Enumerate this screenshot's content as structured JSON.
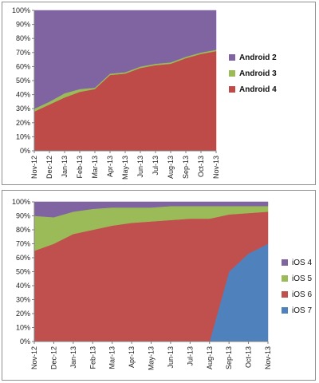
{
  "chart_data": [
    {
      "type": "area",
      "stacked": true,
      "percent": true,
      "title": "",
      "xlabel": "",
      "ylabel": "",
      "ylim": [
        0,
        100
      ],
      "y_ticks": [
        "0%",
        "10%",
        "20%",
        "30%",
        "40%",
        "50%",
        "60%",
        "70%",
        "80%",
        "90%",
        "100%"
      ],
      "categories": [
        "Nov-12",
        "Dec-12",
        "Jan-13",
        "Feb-13",
        "Mar-13",
        "Apr-13",
        "May-13",
        "Jun-13",
        "Jul-13",
        "Aug-13",
        "Sep-13",
        "Oct-13",
        "Nov-13"
      ],
      "legend_position": "right",
      "legend_bold": true,
      "grid": false,
      "series": [
        {
          "name": "Android 4",
          "color": "#be4b48",
          "values": [
            28,
            33,
            38,
            42,
            44,
            54,
            55,
            59,
            61,
            62,
            66,
            69,
            71
          ]
        },
        {
          "name": "Android 3",
          "color": "#9bbb59",
          "values": [
            2,
            2,
            3,
            2,
            1,
            1,
            1,
            1,
            1,
            1,
            1,
            1,
            1
          ]
        },
        {
          "name": "Android 2",
          "color": "#8064a2",
          "values": [
            70,
            65,
            59,
            56,
            55,
            45,
            44,
            40,
            38,
            37,
            33,
            30,
            28
          ]
        }
      ]
    },
    {
      "type": "area",
      "stacked": true,
      "percent": true,
      "title": "",
      "xlabel": "",
      "ylabel": "",
      "ylim": [
        0,
        100
      ],
      "y_ticks": [
        "0%",
        "10%",
        "20%",
        "30%",
        "40%",
        "50%",
        "60%",
        "70%",
        "80%",
        "90%",
        "100%"
      ],
      "categories": [
        "Nov-12",
        "Dec-12",
        "Jan-13",
        "Feb-13",
        "Mar-13",
        "Apr-13",
        "May-13",
        "Jun-13",
        "Jul-13",
        "Aug-13",
        "Sep-13",
        "Oct-13",
        "Nov-13"
      ],
      "legend_position": "right",
      "legend_bold": false,
      "grid": true,
      "series": [
        {
          "name": "iOS 7",
          "color": "#4f81bd",
          "values": [
            0,
            0,
            0,
            0,
            0,
            0,
            0,
            0,
            0,
            0,
            50,
            63,
            70
          ]
        },
        {
          "name": "iOS 6",
          "color": "#c0504d",
          "values": [
            65,
            70,
            77,
            80,
            83,
            85,
            86,
            87,
            88,
            88,
            41,
            29,
            23
          ]
        },
        {
          "name": "iOS 5",
          "color": "#9bbb59",
          "values": [
            25,
            19,
            16,
            15,
            13,
            11,
            10,
            10,
            9,
            9,
            6,
            5,
            4
          ]
        },
        {
          "name": "iOS 4",
          "color": "#8064a2",
          "values": [
            10,
            11,
            7,
            5,
            4,
            4,
            4,
            3,
            3,
            3,
            3,
            3,
            3
          ]
        }
      ]
    }
  ]
}
